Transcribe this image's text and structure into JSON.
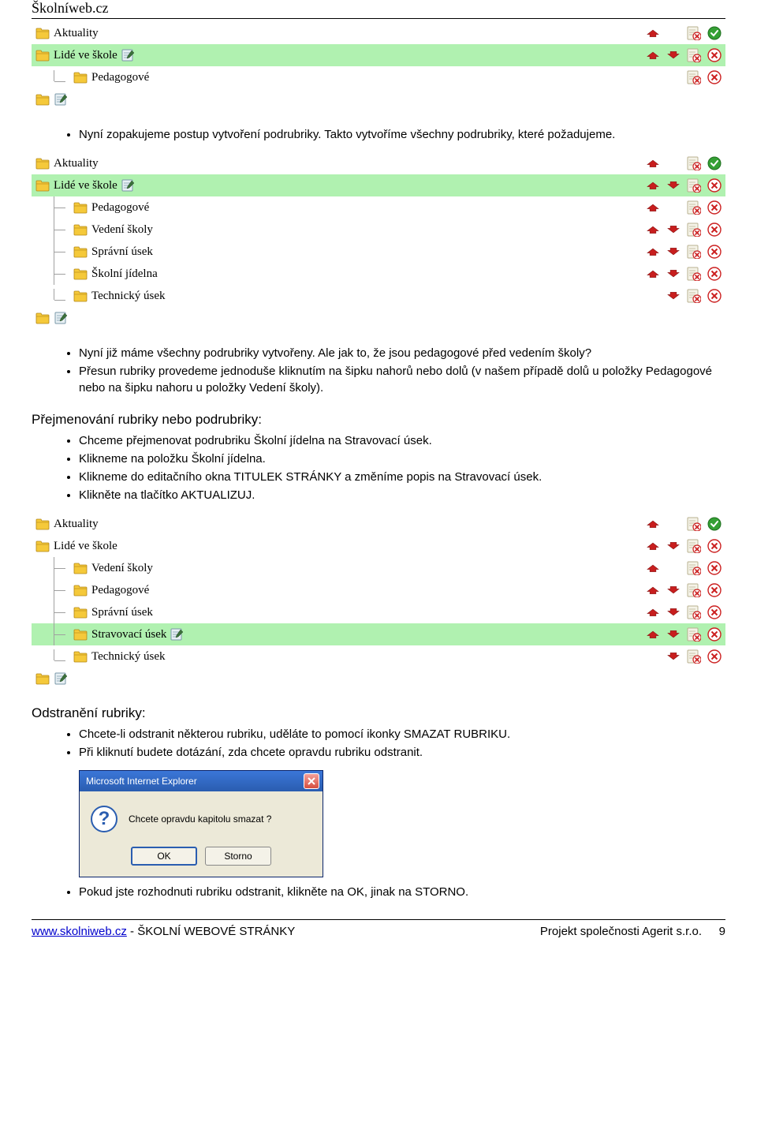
{
  "header": {
    "site": "Školníweb.cz"
  },
  "icons": {
    "folder_color": "#f5c93a",
    "folder_stroke": "#b38616",
    "edit_fill": "#e8f0f4",
    "edit_stroke": "#7a98a8",
    "edit_pencil": "#3a6f3a",
    "arrow_red": "#c81e1e",
    "arrow_dark": "#8a1515",
    "delete_fill": "#f5f3e8",
    "delete_stroke": "#b8b090",
    "delete_x": "#cc2020",
    "ok_fill": "#35a035",
    "ok_stroke": "#1e6e1e"
  },
  "colors": {
    "highlight_bg": "#b0f1b0",
    "tree_line": "#a0a0a0",
    "page_bg": "#ffffff",
    "text": "#000000"
  },
  "tree1": {
    "rows": [
      {
        "level": 0,
        "label": "Aktuality",
        "highlight": false,
        "edit": false,
        "actions": {
          "up": true,
          "down": false,
          "del": true,
          "ok": true
        }
      },
      {
        "level": 0,
        "label": "Lidé ve škole",
        "highlight": true,
        "edit": true,
        "actions": {
          "up": true,
          "down": true,
          "del": true,
          "ok": false,
          "close": true
        }
      },
      {
        "level": 1,
        "label": "Pedagogové",
        "highlight": false,
        "edit": false,
        "actions": {
          "up": false,
          "down": false,
          "del": true,
          "ok": false,
          "close": true
        }
      },
      {
        "level": 0,
        "label": "",
        "highlight": false,
        "edit": true,
        "actions": null
      }
    ]
  },
  "para1": {
    "bullets": [
      "Nyní zopakujeme postup vytvoření podrubriky. Takto vytvoříme všechny podrubriky, které požadujeme."
    ]
  },
  "tree2": {
    "rows": [
      {
        "level": 0,
        "label": "Aktuality",
        "highlight": false,
        "edit": false,
        "actions": {
          "up": true,
          "down": false,
          "del": true,
          "ok": true
        }
      },
      {
        "level": 0,
        "label": "Lidé ve škole",
        "highlight": true,
        "edit": true,
        "actions": {
          "up": true,
          "down": true,
          "del": true,
          "ok": false,
          "close": true
        }
      },
      {
        "level": 1,
        "label": "Pedagogové",
        "highlight": false,
        "edit": false,
        "actions": {
          "up": true,
          "down": false,
          "del": true,
          "ok": false,
          "close": true
        }
      },
      {
        "level": 1,
        "label": "Vedení školy",
        "highlight": false,
        "edit": false,
        "actions": {
          "up": true,
          "down": true,
          "del": true,
          "ok": false,
          "close": true
        }
      },
      {
        "level": 1,
        "label": "Správní úsek",
        "highlight": false,
        "edit": false,
        "actions": {
          "up": true,
          "down": true,
          "del": true,
          "ok": false,
          "close": true
        }
      },
      {
        "level": 1,
        "label": "Školní jídelna",
        "highlight": false,
        "edit": false,
        "actions": {
          "up": true,
          "down": true,
          "del": true,
          "ok": false,
          "close": true
        }
      },
      {
        "level": 1,
        "label": "Technický úsek",
        "highlight": false,
        "edit": false,
        "actions": {
          "up": false,
          "down": true,
          "del": true,
          "ok": false,
          "close": true
        }
      },
      {
        "level": 0,
        "label": "",
        "highlight": false,
        "edit": true,
        "actions": null
      }
    ]
  },
  "para2": {
    "bullets": [
      "Nyní již máme všechny podrubriky vytvořeny. Ale jak to, že jsou pedagogové před vedením školy?",
      "Přesun rubriky provedeme jednoduše kliknutím na šipku nahorů nebo dolů (v našem případě dolů u položky Pedagogové nebo na šipku nahoru u položky Vedení školy)."
    ]
  },
  "section_rename": {
    "heading": "Přejmenování rubriky nebo podrubriky:",
    "bullets": [
      "Chceme přejmenovat podrubriku Školní jídelna na Stravovací úsek.",
      "Klikneme na položku Školní jídelna.",
      "Klikneme do editačního okna TITULEK STRÁNKY a změníme popis na Stravovací úsek.",
      "Klikněte na tlačítko AKTUALIZUJ."
    ]
  },
  "tree3": {
    "rows": [
      {
        "level": 0,
        "label": "Aktuality",
        "highlight": false,
        "edit": false,
        "actions": {
          "up": true,
          "down": false,
          "del": true,
          "ok": true
        }
      },
      {
        "level": 0,
        "label": "Lidé ve škole",
        "highlight": false,
        "edit": false,
        "actions": {
          "up": true,
          "down": true,
          "del": true,
          "ok": false,
          "close": true
        }
      },
      {
        "level": 1,
        "label": "Vedení školy",
        "highlight": false,
        "edit": false,
        "actions": {
          "up": true,
          "down": false,
          "del": true,
          "ok": false,
          "close": true
        }
      },
      {
        "level": 1,
        "label": "Pedagogové",
        "highlight": false,
        "edit": false,
        "actions": {
          "up": true,
          "down": true,
          "del": true,
          "ok": false,
          "close": true
        }
      },
      {
        "level": 1,
        "label": "Správní úsek",
        "highlight": false,
        "edit": false,
        "actions": {
          "up": true,
          "down": true,
          "del": true,
          "ok": false,
          "close": true
        }
      },
      {
        "level": 1,
        "label": "Stravovací úsek",
        "highlight": true,
        "edit": true,
        "actions": {
          "up": true,
          "down": true,
          "del": true,
          "ok": false,
          "close": true
        }
      },
      {
        "level": 1,
        "label": "Technický úsek",
        "highlight": false,
        "edit": false,
        "actions": {
          "up": false,
          "down": true,
          "del": true,
          "ok": false,
          "close": true
        }
      },
      {
        "level": 0,
        "label": "",
        "highlight": false,
        "edit": true,
        "actions": null
      }
    ]
  },
  "section_delete": {
    "heading": "Odstranění rubriky:",
    "bullets": [
      "Chcete-li odstranit některou rubriku, uděláte to pomocí ikonky SMAZAT RUBRIKU.",
      "Při kliknutí budete dotázání, zda chcete opravdu rubriku odstranit."
    ],
    "after_bullets": [
      "Pokud jste rozhodnuti rubriku odstranit, klikněte na OK, jinak na STORNO."
    ]
  },
  "dialog": {
    "title": "Microsoft Internet Explorer",
    "message": "Chcete opravdu kapitolu smazat ?",
    "ok": "OK",
    "cancel": "Storno"
  },
  "footer": {
    "url": "www.skolniweb.cz",
    "tag": " - ŠKOLNÍ WEBOVÉ STRÁNKY",
    "right": "Projekt společnosti Agerit s.r.o.",
    "page": "9"
  }
}
